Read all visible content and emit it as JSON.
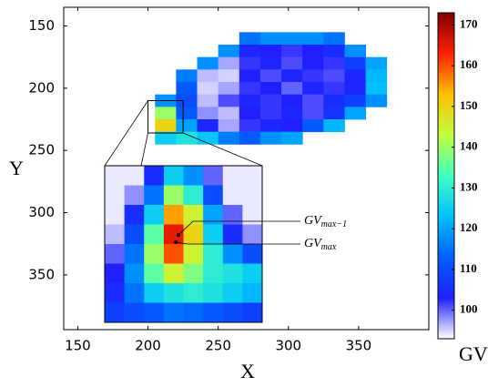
{
  "chart_data": {
    "type": "heatmap",
    "xlabel": "X",
    "ylabel": "Y",
    "colorbar_label": "GV",
    "xlim": [
      140,
      400
    ],
    "ylim": [
      394,
      135
    ],
    "xticks": [
      150,
      200,
      250,
      300,
      350
    ],
    "yticks": [
      150,
      200,
      250,
      300,
      350
    ],
    "clim": [
      93,
      173
    ],
    "cticks": [
      100,
      110,
      120,
      130,
      140,
      150,
      160,
      170
    ],
    "colormap": [
      "#ffffff",
      "#2020ff",
      "#0060ff",
      "#00c0ff",
      "#40ffc0",
      "#c0ff40",
      "#ffc000",
      "#ff2000",
      "#800000"
    ],
    "x_edges": [
      205,
      220,
      235,
      250,
      265,
      280,
      295,
      310,
      325,
      340,
      355,
      370
    ],
    "y_edges": [
      155,
      165,
      175,
      185,
      195,
      205,
      215,
      225,
      235,
      245
    ],
    "z": [
      [
        null,
        null,
        null,
        null,
        115,
        118,
        118,
        118,
        115,
        null,
        null
      ],
      [
        null,
        null,
        null,
        118,
        104,
        103,
        102,
        103,
        105,
        118,
        null
      ],
      [
        null,
        null,
        118,
        97,
        102,
        104,
        101,
        103,
        102,
        108,
        120
      ],
      [
        null,
        116,
        96,
        95,
        103,
        101,
        104,
        102,
        101,
        104,
        122
      ],
      [
        null,
        112,
        95,
        97,
        102,
        103,
        100,
        104,
        102,
        104,
        123
      ],
      [
        118,
        110,
        96,
        101,
        104,
        102,
        103,
        101,
        105,
        108,
        118
      ],
      [
        140,
        112,
        98,
        96,
        103,
        102,
        104,
        101,
        106,
        120,
        null
      ],
      [
        150,
        120,
        104,
        97,
        102,
        104,
        103,
        112,
        122,
        null,
        null
      ],
      [
        125,
        128,
        124,
        116,
        112,
        118,
        120,
        null,
        null,
        null,
        null
      ]
    ],
    "inset": {
      "xlim": [
        200,
        225
      ],
      "ylim": [
        236,
        210
      ],
      "z": [
        [
          94,
          94,
          105,
          125,
          118,
          100,
          94,
          94
        ],
        [
          94,
          98,
          115,
          140,
          130,
          110,
          94,
          94
        ],
        [
          94,
          105,
          125,
          155,
          145,
          120,
          100,
          94
        ],
        [
          96,
          110,
          135,
          165,
          150,
          125,
          105,
          98
        ],
        [
          100,
          115,
          140,
          160,
          145,
          130,
          118,
          110
        ],
        [
          103,
          118,
          135,
          145,
          138,
          130,
          128,
          125
        ],
        [
          105,
          115,
          125,
          128,
          130,
          128,
          125,
          122
        ],
        [
          108,
          110,
          112,
          115,
          114,
          112,
          110,
          108
        ]
      ]
    },
    "annotations": [
      {
        "base": "GV",
        "sub": "max−1",
        "x": 211.7,
        "y": 221.5
      },
      {
        "base": "GV",
        "sub": "max",
        "x": 211.3,
        "y": 222.7
      }
    ]
  }
}
